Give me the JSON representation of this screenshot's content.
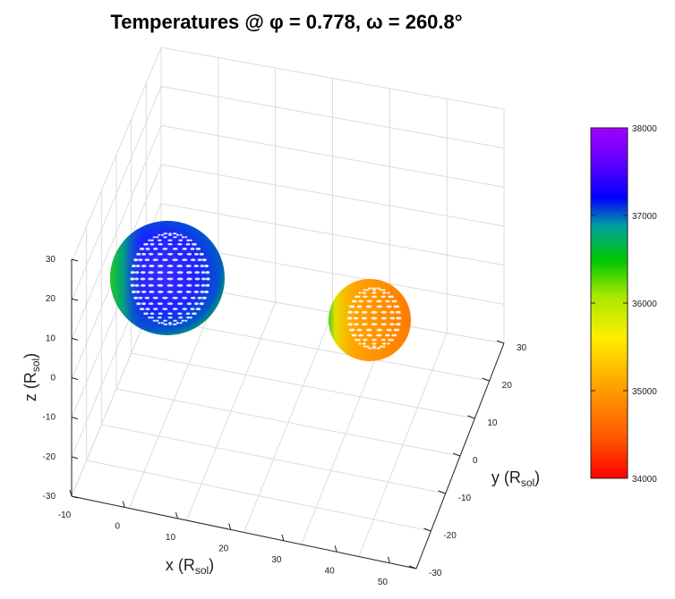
{
  "chart_data": {
    "type": "scatter",
    "title": "Temperatures @ φ = 0.778, ω = 260.8°",
    "xlabel": {
      "main": "x (R",
      "sub": "sol",
      "close": ")"
    },
    "ylabel": {
      "main": "y (R",
      "sub": "sol",
      "close": ")"
    },
    "zlabel": {
      "main": "z (R",
      "sub": "sol",
      "close": ")"
    },
    "xlim": [
      -10,
      55
    ],
    "ylim": [
      -30,
      30
    ],
    "zlim": [
      -30,
      30
    ],
    "x_ticks": [
      "-10",
      "0",
      "10",
      "20",
      "30",
      "40",
      "50"
    ],
    "y_ticks": [
      "-30",
      "-20",
      "-10",
      "0",
      "10",
      "20",
      "30"
    ],
    "z_ticks": [
      "-30",
      "-20",
      "-10",
      "0",
      "10",
      "20",
      "30"
    ],
    "grid": true,
    "colorbar": {
      "range": [
        34000,
        38000
      ],
      "ticks": [
        "34000",
        "35000",
        "36000",
        "37000",
        "38000"
      ],
      "colormap": "hsv (red to violet)"
    },
    "series": [
      {
        "center": [
          0,
          0,
          20
        ],
        "radius": 9,
        "temperature_range": [
          36300,
          37900
        ]
      },
      {
        "center": [
          40,
          0,
          0
        ],
        "radius": 6.5,
        "temperature_range": [
          34500,
          36000
        ]
      }
    ]
  }
}
